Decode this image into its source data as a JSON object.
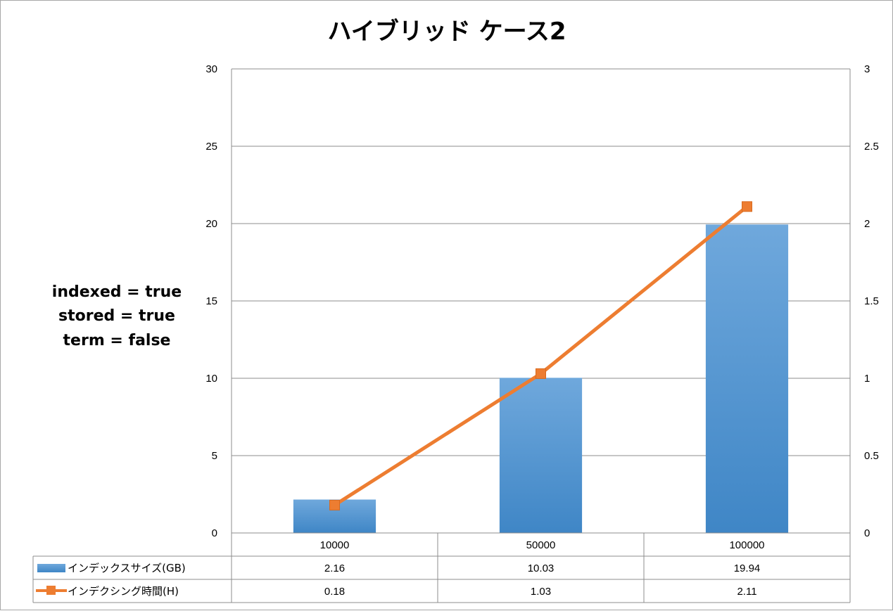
{
  "chart_data": {
    "type": "bar",
    "title": "ハイブリッド ケース2",
    "annotations": [
      "indexed = true",
      "stored = true",
      "term = false"
    ],
    "categories": [
      "10000",
      "50000",
      "100000"
    ],
    "series": [
      {
        "name": "インデックスサイズ(GB)",
        "type": "bar",
        "axis": "left",
        "values": [
          2.16,
          10.03,
          19.94
        ],
        "value_labels": [
          "2.16",
          "10.03",
          "19.94"
        ],
        "color": "#5b9bd5"
      },
      {
        "name": "インデクシング時間(H)",
        "type": "line",
        "axis": "right",
        "values": [
          0.18,
          1.03,
          2.11
        ],
        "value_labels": [
          "0.18",
          "1.03",
          "2.11"
        ],
        "color": "#ed7d31"
      }
    ],
    "y_left": {
      "min": 0,
      "max": 30,
      "ticks": [
        0,
        5,
        10,
        15,
        20,
        25,
        30
      ],
      "tick_labels": [
        "0",
        "5",
        "10",
        "15",
        "20",
        "25",
        "30"
      ]
    },
    "y_right": {
      "min": 0,
      "max": 3,
      "ticks": [
        0,
        0.5,
        1,
        1.5,
        2,
        2.5,
        3
      ],
      "tick_labels": [
        "0",
        "0.5",
        "1",
        "1.5",
        "2",
        "2.5",
        "3"
      ]
    },
    "grid": true,
    "legend": "data-table"
  }
}
